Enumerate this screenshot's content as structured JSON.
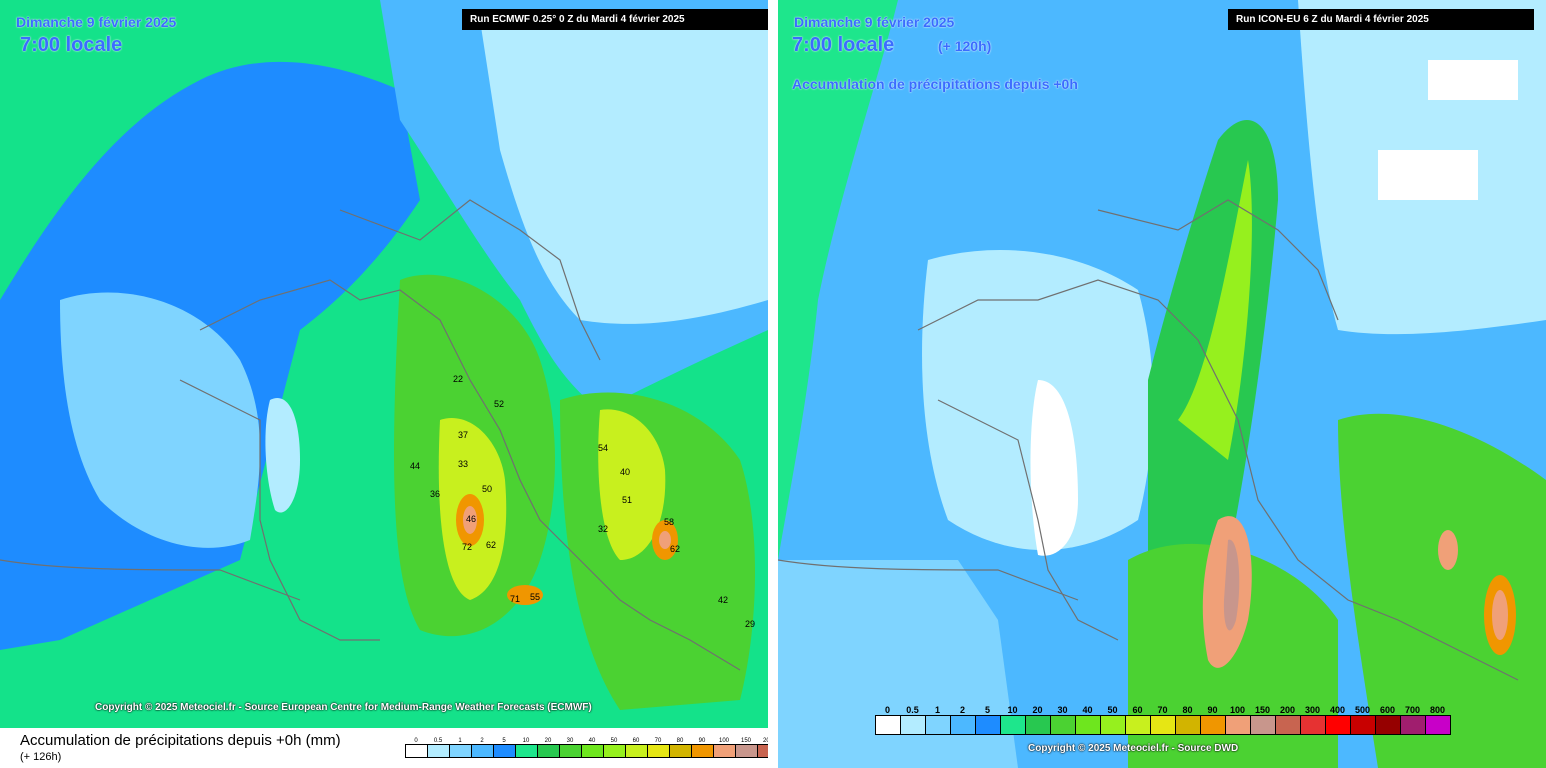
{
  "left_map": {
    "date": "Dimanche 9 février 2025",
    "time": "7:00 locale",
    "run": "Run ECMWF 0.25° 0 Z du Mardi 4 février 2025",
    "copyright": "Copyright © 2025 Meteociel.fr - Source European Centre for Medium-Range Weather Forecasts (ECMWF)",
    "legend_title": "Accumulation de précipitations depuis +0h (mm)",
    "lead": "(+ 126h)",
    "values": [
      "46",
      "36",
      "52",
      "50",
      "37",
      "72",
      "62",
      "33",
      "44",
      "40",
      "51",
      "58",
      "62",
      "55",
      "71",
      "54",
      "42",
      "32",
      "29",
      "22"
    ]
  },
  "right_map": {
    "date": "Dimanche 9 février 2025",
    "time": "7:00 locale",
    "lead": "(+ 120h)",
    "subtitle": "Accumulation de précipitations depuis +0h",
    "run": "Run ICON-EU 6 Z du Mardi 4 février 2025",
    "copyright": "Copyright © 2025 Meteociel.fr - Source DWD"
  },
  "legend": {
    "labels": [
      "0",
      "0.5",
      "1",
      "2",
      "5",
      "10",
      "20",
      "30",
      "40",
      "50",
      "60",
      "70",
      "80",
      "90",
      "100",
      "150",
      "200",
      "300",
      "400",
      "500",
      "600",
      "700",
      "800"
    ],
    "colors": [
      "#ffffff",
      "#b3ecff",
      "#7fd4ff",
      "#4cb8ff",
      "#1e8cff",
      "#1ee68c",
      "#28c850",
      "#4bd232",
      "#6ee61e",
      "#96f01e",
      "#c8f01e",
      "#e6e614",
      "#d2b400",
      "#f09600",
      "#f0a078",
      "#c8968c",
      "#c86450",
      "#e63232",
      "#ff0000",
      "#c80000",
      "#960000",
      "#a01e6e",
      "#c800c8"
    ]
  }
}
